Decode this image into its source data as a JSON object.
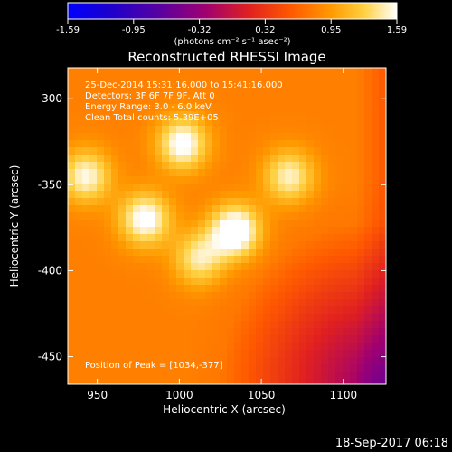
{
  "chart_data": {
    "type": "heatmap",
    "title": "Reconstructed RHESSI Image",
    "xlabel": "Heliocentric X (arcsec)",
    "ylabel": "Heliocentric Y (arcsec)",
    "xlim": [
      932,
      1126
    ],
    "ylim": [
      -466,
      -282
    ],
    "x_ticks": [
      950,
      1000,
      1050,
      1100
    ],
    "y_ticks": [
      -300,
      -350,
      -400,
      -450
    ],
    "colorbar": {
      "ticks": [
        "-1.59",
        "-0.95",
        "-0.32",
        "0.32",
        "0.95",
        "1.59"
      ],
      "label": "(photons cm⁻² s⁻¹ asec⁻²)",
      "range": [
        -1.59,
        1.59
      ]
    },
    "annotations": {
      "time_range": "25-Dec-2014 15:31:16.000 to 15:41:16.000",
      "detectors": "Detectors: 3F 6F 7F 9F, Att 0",
      "energy_range": "Energy Range: 3.0 - 6.0 keV",
      "clean": "Clean    Total counts: 5.39E+05",
      "peak": "Position of Peak = [1034,-377]"
    },
    "peak": [
      1034,
      -377
    ],
    "sources": [
      {
        "x": 1034,
        "y": -377,
        "value": 1.59
      },
      {
        "x": 1002,
        "y": -326,
        "value": 1.45
      },
      {
        "x": 979,
        "y": -370,
        "value": 1.45
      },
      {
        "x": 943,
        "y": -345,
        "value": 1.35
      },
      {
        "x": 1067,
        "y": -345,
        "value": 1.3
      },
      {
        "x": 1012,
        "y": -393,
        "value": 1.25
      }
    ],
    "footer_date": "18-Sep-2017 06:18"
  }
}
